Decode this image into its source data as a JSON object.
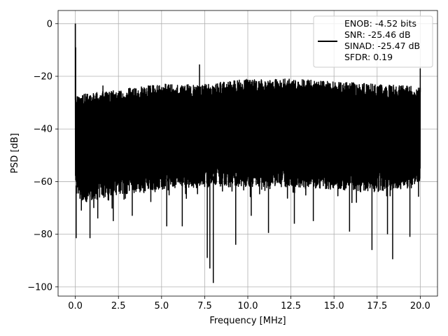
{
  "chart_data": {
    "type": "line",
    "title": "",
    "xlabel": "Frequency [MHz]",
    "ylabel": "PSD [dB]",
    "xlim": [
      -1.0,
      21.0
    ],
    "ylim": [
      -103.5,
      5.0
    ],
    "xticks": [
      0.0,
      2.5,
      5.0,
      7.5,
      10.0,
      12.5,
      15.0,
      17.5,
      20.0
    ],
    "xtick_labels": [
      "0.0",
      "2.5",
      "5.0",
      "7.5",
      "10.0",
      "12.5",
      "15.0",
      "17.5",
      "20.0"
    ],
    "yticks": [
      0,
      -20,
      -40,
      -60,
      -80,
      -100
    ],
    "ytick_labels": [
      "0",
      "−20",
      "−40",
      "−60",
      "−80",
      "−100"
    ],
    "grid": true,
    "legend_position": "upper right",
    "legend_lines": [
      "ENOB: -4.52 bits",
      "SNR: -25.46 dB",
      "SINAD: -25.47 dB",
      "SFDR: 0.19"
    ],
    "series": [
      {
        "color": "#000000",
        "x_range": [
          0.0,
          20.0
        ],
        "noise_envelope": {
          "x": [
            0.0,
            0.3,
            2.5,
            5.0,
            7.5,
            10.0,
            12.5,
            15.0,
            17.5,
            20.0
          ],
          "upper_db": [
            -27,
            -27,
            -25,
            -23,
            -23,
            -21,
            -21,
            -22,
            -23,
            -24
          ],
          "dense_lower_db": [
            -65,
            -68,
            -65,
            -63,
            -62,
            -62,
            -62,
            -63,
            -64,
            -62
          ]
        },
        "peaks": [
          {
            "x": 0.0,
            "y": 0.0
          },
          {
            "x": 0.02,
            "y": -9.0
          },
          {
            "x": 1.6,
            "y": -23.5
          },
          {
            "x": 7.2,
            "y": -15.5
          },
          {
            "x": 20.0,
            "y": -17.0
          }
        ],
        "dips": [
          {
            "x": 0.05,
            "y": -81.5
          },
          {
            "x": 0.35,
            "y": -71.0
          },
          {
            "x": 0.85,
            "y": -81.5
          },
          {
            "x": 1.3,
            "y": -74.0
          },
          {
            "x": 2.2,
            "y": -75.0
          },
          {
            "x": 3.3,
            "y": -73.0
          },
          {
            "x": 5.3,
            "y": -77.0
          },
          {
            "x": 6.2,
            "y": -77.0
          },
          {
            "x": 7.65,
            "y": -89.0
          },
          {
            "x": 7.8,
            "y": -93.0
          },
          {
            "x": 8.0,
            "y": -98.5
          },
          {
            "x": 9.3,
            "y": -84.0
          },
          {
            "x": 10.2,
            "y": -73.0
          },
          {
            "x": 11.2,
            "y": -79.5
          },
          {
            "x": 12.7,
            "y": -76.0
          },
          {
            "x": 13.8,
            "y": -75.0
          },
          {
            "x": 15.9,
            "y": -79.0
          },
          {
            "x": 17.2,
            "y": -86.0
          },
          {
            "x": 18.1,
            "y": -80.0
          },
          {
            "x": 18.4,
            "y": -89.5
          },
          {
            "x": 19.4,
            "y": -81.0
          }
        ]
      }
    ]
  }
}
